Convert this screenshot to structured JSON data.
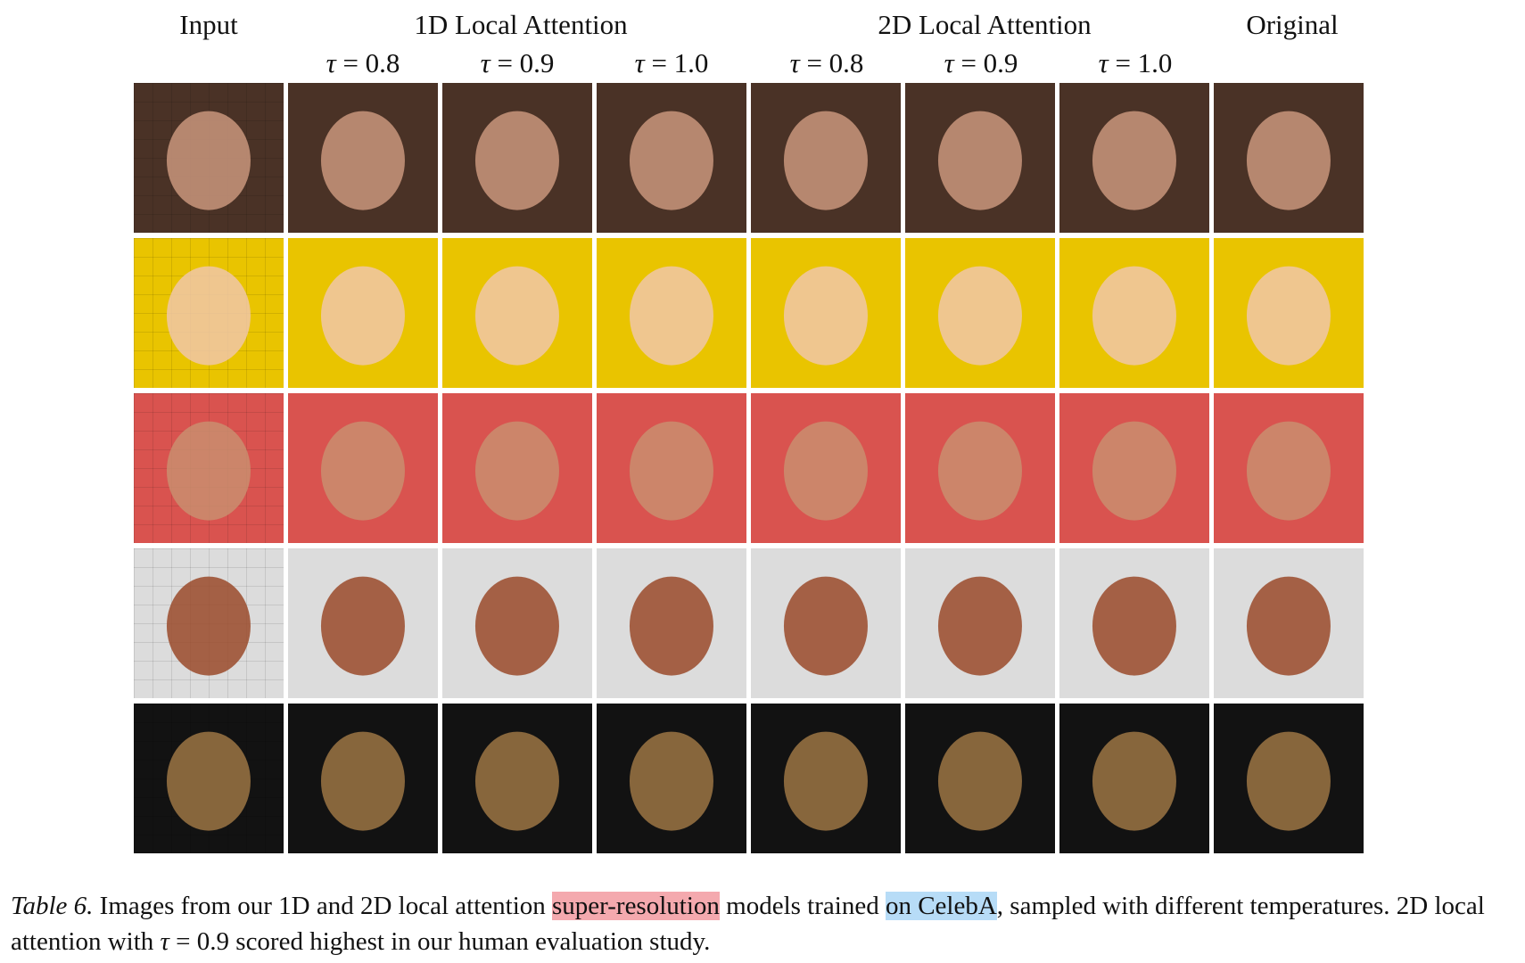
{
  "headers": {
    "input": "Input",
    "group_1d": "1D Local Attention",
    "group_2d": "2D Local Attention",
    "original": "Original"
  },
  "temperatures": {
    "symbol": "τ",
    "t1": "= 0.8",
    "t2": "= 0.9",
    "t3": "= 1.0",
    "t4": "= 0.8",
    "t5": "= 0.9",
    "t6": "= 1.0"
  },
  "rows": [
    {
      "bg": "#4a3226",
      "face": "#c9967c"
    },
    {
      "bg": "#e9c400",
      "face": "#f0c7a8"
    },
    {
      "bg": "#d9534f",
      "face": "#c98e6e"
    },
    {
      "bg": "#dcdcdc",
      "face": "#9a4a2a"
    },
    {
      "bg": "#121212",
      "face": "#9c7644"
    }
  ],
  "caption": {
    "label": "Table 6.",
    "text_a": " Images from our 1D and 2D local attention ",
    "hl_red": "super-resolution",
    "text_b": " models trained ",
    "hl_blue": "on CelebA",
    "text_c": ", sampled with different temperatures. 2D local attention with ",
    "tau": "τ",
    "text_d": " = 0.9 scored highest in our human evaluation study."
  }
}
